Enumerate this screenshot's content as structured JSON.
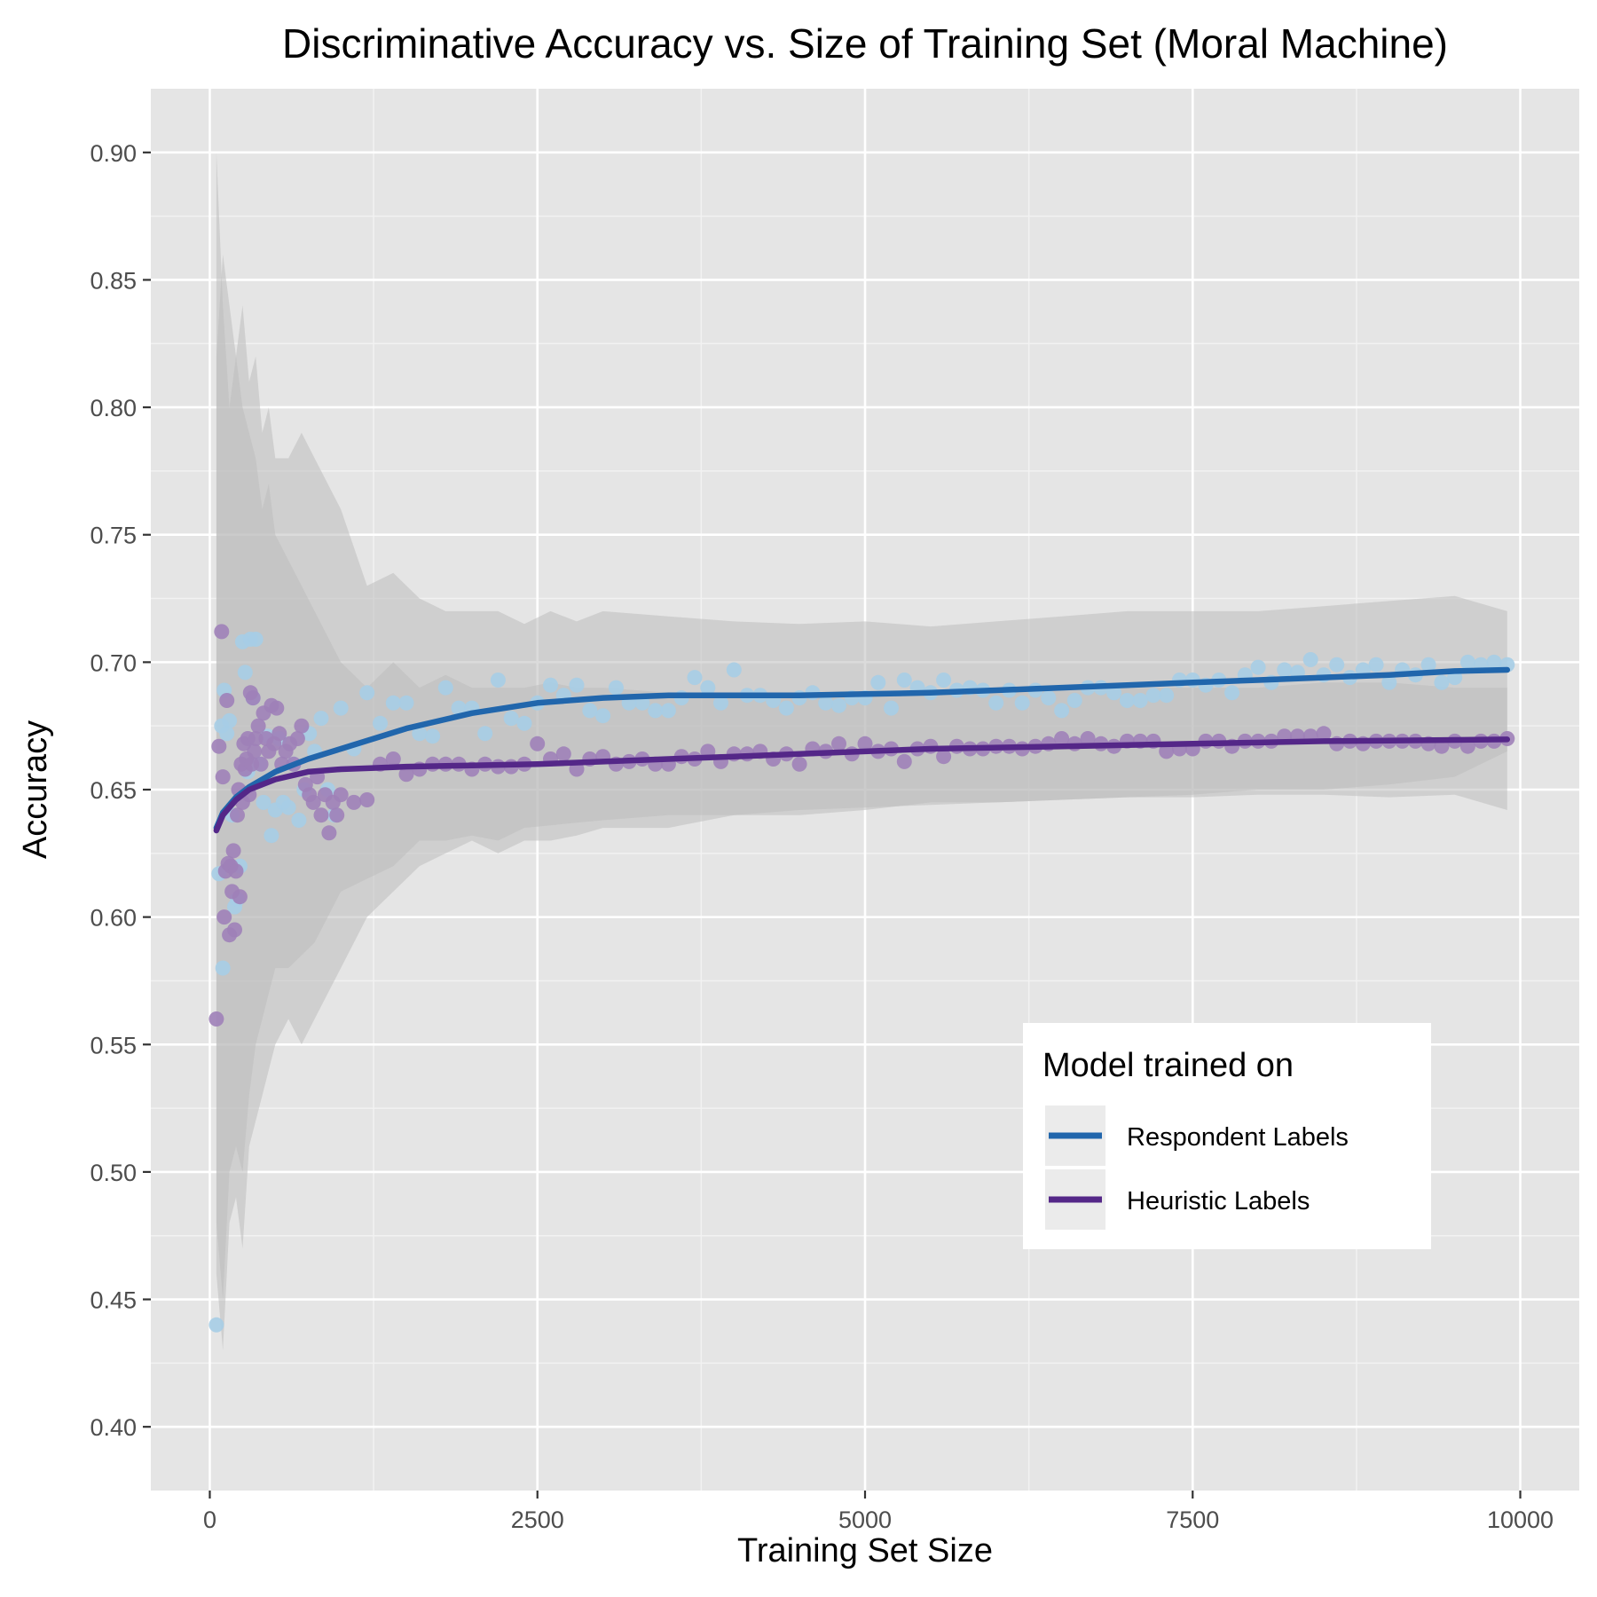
{
  "chart_data": {
    "type": "scatter",
    "title": "Discriminative Accuracy vs. Size of Training Set (Moral Machine)",
    "xlabel": "Training Set Size",
    "ylabel": "Accuracy",
    "xlim": [
      -450,
      10450
    ],
    "ylim": [
      0.375,
      0.925
    ],
    "x_ticks": [
      0,
      2500,
      5000,
      7500,
      10000
    ],
    "x_tick_labels": [
      "0",
      "2500",
      "5000",
      "7500",
      "10000"
    ],
    "y_ticks": [
      0.4,
      0.45,
      0.5,
      0.55,
      0.6,
      0.65,
      0.7,
      0.75,
      0.8,
      0.85,
      0.9
    ],
    "y_tick_labels": [
      "0.40",
      "0.45",
      "0.50",
      "0.55",
      "0.60",
      "0.65",
      "0.70",
      "0.75",
      "0.80",
      "0.85",
      "0.90"
    ],
    "grid": true,
    "legend": {
      "title": "Model trained on",
      "position": "bottom-right inside plot",
      "entries": [
        "Respondent Labels",
        "Heuristic Labels"
      ]
    },
    "colors": {
      "panel": "#e5e5e5",
      "band": "#bdbdbd",
      "respondent_line": "#2166ac",
      "respondent_points": "#a6cde5",
      "heuristic_line": "#542788",
      "heuristic_points": "#9e81b8"
    },
    "series": [
      {
        "name": "Respondent Labels",
        "smooth_x": [
          50,
          100,
          200,
          300,
          500,
          750,
          1000,
          1500,
          2000,
          2500,
          3000,
          3500,
          4000,
          4500,
          5000,
          5500,
          6000,
          6500,
          7000,
          7500,
          8000,
          8500,
          9000,
          9500,
          9900
        ],
        "smooth_y": [
          0.635,
          0.641,
          0.647,
          0.651,
          0.657,
          0.662,
          0.666,
          0.674,
          0.68,
          0.684,
          0.686,
          0.687,
          0.687,
          0.687,
          0.6875,
          0.688,
          0.689,
          0.69,
          0.691,
          0.692,
          0.693,
          0.694,
          0.695,
          0.6965,
          0.697
        ],
        "band_x": [
          50,
          100,
          150,
          200,
          250,
          300,
          350,
          400,
          450,
          500,
          600,
          700,
          800,
          900,
          1000,
          1200,
          1400,
          1600,
          1800,
          2000,
          2200,
          2400,
          2600,
          2800,
          3000,
          3500,
          4000,
          4500,
          5000,
          5500,
          6000,
          6500,
          7000,
          7500,
          8000,
          8500,
          9000,
          9500,
          9900
        ],
        "band_low": [
          0.46,
          0.43,
          0.48,
          0.49,
          0.47,
          0.51,
          0.52,
          0.53,
          0.54,
          0.55,
          0.56,
          0.55,
          0.56,
          0.57,
          0.58,
          0.6,
          0.61,
          0.62,
          0.625,
          0.63,
          0.625,
          0.63,
          0.63,
          0.632,
          0.635,
          0.635,
          0.64,
          0.64,
          0.642,
          0.645,
          0.645,
          0.646,
          0.647,
          0.648,
          0.65,
          0.65,
          0.652,
          0.655,
          0.665
        ],
        "band_high": [
          0.82,
          0.86,
          0.84,
          0.82,
          0.84,
          0.81,
          0.82,
          0.79,
          0.8,
          0.78,
          0.78,
          0.79,
          0.78,
          0.77,
          0.76,
          0.73,
          0.735,
          0.725,
          0.72,
          0.72,
          0.72,
          0.715,
          0.72,
          0.716,
          0.72,
          0.718,
          0.716,
          0.715,
          0.716,
          0.714,
          0.716,
          0.718,
          0.72,
          0.72,
          0.72,
          0.722,
          0.724,
          0.726,
          0.72
        ],
        "x": [
          50,
          70,
          90,
          100,
          110,
          130,
          150,
          170,
          190,
          210,
          230,
          250,
          270,
          290,
          310,
          330,
          350,
          380,
          410,
          440,
          470,
          500,
          530,
          560,
          600,
          640,
          680,
          720,
          760,
          800,
          850,
          900,
          950,
          1000,
          1100,
          1200,
          1300,
          1400,
          1500,
          1600,
          1700,
          1800,
          1900,
          2000,
          2100,
          2200,
          2300,
          2400,
          2500,
          2600,
          2700,
          2800,
          2900,
          3000,
          3100,
          3200,
          3300,
          3400,
          3500,
          3600,
          3700,
          3800,
          3900,
          4000,
          4100,
          4200,
          4300,
          4400,
          4500,
          4600,
          4700,
          4800,
          4900,
          5000,
          5100,
          5200,
          5300,
          5400,
          5500,
          5600,
          5700,
          5800,
          5900,
          6000,
          6100,
          6200,
          6300,
          6400,
          6500,
          6600,
          6700,
          6800,
          6900,
          7000,
          7100,
          7200,
          7300,
          7400,
          7500,
          7600,
          7700,
          7800,
          7900,
          8000,
          8100,
          8200,
          8300,
          8400,
          8500,
          8600,
          8700,
          8800,
          8900,
          9000,
          9100,
          9200,
          9300,
          9400,
          9500,
          9600,
          9700,
          9800,
          9900
        ],
        "y": [
          0.44,
          0.617,
          0.675,
          0.58,
          0.689,
          0.672,
          0.677,
          0.64,
          0.604,
          0.607,
          0.62,
          0.708,
          0.696,
          0.657,
          0.709,
          0.686,
          0.709,
          0.66,
          0.645,
          0.671,
          0.632,
          0.642,
          0.67,
          0.645,
          0.643,
          0.66,
          0.638,
          0.65,
          0.672,
          0.665,
          0.678,
          0.65,
          0.64,
          0.682,
          0.666,
          0.688,
          0.676,
          0.684,
          0.684,
          0.672,
          0.671,
          0.69,
          0.682,
          0.682,
          0.672,
          0.693,
          0.678,
          0.676,
          0.684,
          0.691,
          0.687,
          0.691,
          0.681,
          0.679,
          0.69,
          0.684,
          0.684,
          0.681,
          0.681,
          0.686,
          0.694,
          0.69,
          0.684,
          0.697,
          0.687,
          0.687,
          0.685,
          0.682,
          0.686,
          0.688,
          0.684,
          0.683,
          0.686,
          0.686,
          0.692,
          0.682,
          0.693,
          0.69,
          0.688,
          0.693,
          0.689,
          0.69,
          0.689,
          0.684,
          0.689,
          0.684,
          0.689,
          0.686,
          0.681,
          0.685,
          0.69,
          0.69,
          0.688,
          0.685,
          0.685,
          0.687,
          0.687,
          0.693,
          0.693,
          0.691,
          0.693,
          0.688,
          0.695,
          0.698,
          0.692,
          0.697,
          0.696,
          0.701,
          0.695,
          0.699,
          0.694,
          0.697,
          0.699,
          0.692,
          0.697,
          0.695,
          0.699,
          0.692,
          0.694,
          0.7,
          0.699,
          0.7,
          0.699
        ]
      },
      {
        "name": "Heuristic Labels",
        "smooth_x": [
          50,
          100,
          200,
          300,
          500,
          750,
          1000,
          1250,
          1500,
          2000,
          2500,
          3000,
          3500,
          4000,
          4500,
          5000,
          5500,
          6000,
          6500,
          7000,
          7500,
          8000,
          8500,
          9000,
          9500,
          9900
        ],
        "smooth_y": [
          0.634,
          0.64,
          0.646,
          0.65,
          0.654,
          0.657,
          0.658,
          0.6585,
          0.659,
          0.6595,
          0.66,
          0.661,
          0.662,
          0.663,
          0.664,
          0.665,
          0.666,
          0.6665,
          0.667,
          0.6675,
          0.668,
          0.6685,
          0.669,
          0.6692,
          0.6695,
          0.6697
        ],
        "band_x": [
          50,
          100,
          150,
          200,
          250,
          300,
          350,
          400,
          450,
          500,
          600,
          700,
          800,
          900,
          1000,
          1200,
          1400,
          1600,
          1800,
          2000,
          2200,
          2400,
          2600,
          2800,
          3000,
          3500,
          4000,
          4500,
          5000,
          5500,
          6000,
          6500,
          7000,
          7500,
          8000,
          8500,
          9000,
          9500,
          9900
        ],
        "band_low": [
          0.48,
          0.45,
          0.5,
          0.51,
          0.5,
          0.53,
          0.55,
          0.56,
          0.57,
          0.58,
          0.58,
          0.585,
          0.59,
          0.6,
          0.61,
          0.615,
          0.62,
          0.63,
          0.63,
          0.632,
          0.63,
          0.635,
          0.636,
          0.637,
          0.638,
          0.64,
          0.64,
          0.642,
          0.643,
          0.644,
          0.645,
          0.646,
          0.647,
          0.647,
          0.648,
          0.648,
          0.647,
          0.648,
          0.642
        ],
        "band_high": [
          0.9,
          0.84,
          0.8,
          0.82,
          0.8,
          0.79,
          0.78,
          0.76,
          0.77,
          0.75,
          0.74,
          0.73,
          0.72,
          0.71,
          0.7,
          0.69,
          0.7,
          0.69,
          0.695,
          0.69,
          0.69,
          0.69,
          0.692,
          0.69,
          0.69,
          0.688,
          0.688,
          0.687,
          0.688,
          0.688,
          0.689,
          0.69,
          0.69,
          0.69,
          0.69,
          0.692,
          0.692,
          0.69,
          0.69
        ],
        "x": [
          50,
          70,
          90,
          100,
          110,
          120,
          130,
          140,
          150,
          160,
          170,
          180,
          190,
          200,
          210,
          220,
          230,
          240,
          250,
          260,
          270,
          280,
          290,
          300,
          310,
          320,
          330,
          340,
          350,
          370,
          390,
          410,
          430,
          450,
          470,
          490,
          510,
          530,
          550,
          580,
          610,
          640,
          670,
          700,
          730,
          760,
          790,
          820,
          850,
          880,
          910,
          940,
          970,
          1000,
          1100,
          1200,
          1300,
          1400,
          1500,
          1600,
          1700,
          1800,
          1900,
          2000,
          2100,
          2200,
          2300,
          2400,
          2500,
          2600,
          2700,
          2800,
          2900,
          3000,
          3100,
          3200,
          3300,
          3400,
          3500,
          3600,
          3700,
          3800,
          3900,
          4000,
          4100,
          4200,
          4300,
          4400,
          4500,
          4600,
          4700,
          4800,
          4900,
          5000,
          5100,
          5200,
          5300,
          5400,
          5500,
          5600,
          5700,
          5800,
          5900,
          6000,
          6100,
          6200,
          6300,
          6400,
          6500,
          6600,
          6700,
          6800,
          6900,
          7000,
          7100,
          7200,
          7300,
          7400,
          7500,
          7600,
          7700,
          7800,
          7900,
          8000,
          8100,
          8200,
          8300,
          8400,
          8500,
          8600,
          8700,
          8800,
          8900,
          9000,
          9100,
          9200,
          9300,
          9400,
          9500,
          9600,
          9700,
          9800,
          9900
        ],
        "y": [
          0.56,
          0.667,
          0.712,
          0.655,
          0.6,
          0.618,
          0.685,
          0.621,
          0.593,
          0.62,
          0.61,
          0.626,
          0.595,
          0.618,
          0.64,
          0.65,
          0.608,
          0.66,
          0.645,
          0.668,
          0.658,
          0.662,
          0.67,
          0.648,
          0.688,
          0.66,
          0.686,
          0.665,
          0.67,
          0.675,
          0.66,
          0.68,
          0.67,
          0.665,
          0.683,
          0.668,
          0.682,
          0.672,
          0.66,
          0.665,
          0.668,
          0.66,
          0.67,
          0.675,
          0.652,
          0.648,
          0.645,
          0.655,
          0.64,
          0.648,
          0.633,
          0.645,
          0.64,
          0.648,
          0.645,
          0.646,
          0.66,
          0.662,
          0.656,
          0.658,
          0.66,
          0.66,
          0.66,
          0.658,
          0.66,
          0.659,
          0.659,
          0.66,
          0.668,
          0.662,
          0.664,
          0.658,
          0.662,
          0.663,
          0.66,
          0.661,
          0.662,
          0.66,
          0.66,
          0.663,
          0.662,
          0.665,
          0.661,
          0.664,
          0.664,
          0.665,
          0.662,
          0.664,
          0.66,
          0.666,
          0.665,
          0.668,
          0.664,
          0.668,
          0.665,
          0.666,
          0.661,
          0.666,
          0.667,
          0.663,
          0.667,
          0.666,
          0.666,
          0.667,
          0.667,
          0.666,
          0.667,
          0.668,
          0.67,
          0.668,
          0.67,
          0.668,
          0.667,
          0.669,
          0.669,
          0.669,
          0.665,
          0.666,
          0.666,
          0.669,
          0.669,
          0.667,
          0.669,
          0.669,
          0.669,
          0.671,
          0.671,
          0.671,
          0.672,
          0.668,
          0.669,
          0.668,
          0.669,
          0.669,
          0.669,
          0.669,
          0.668,
          0.667,
          0.669,
          0.667,
          0.669,
          0.669,
          0.67
        ]
      }
    ]
  }
}
